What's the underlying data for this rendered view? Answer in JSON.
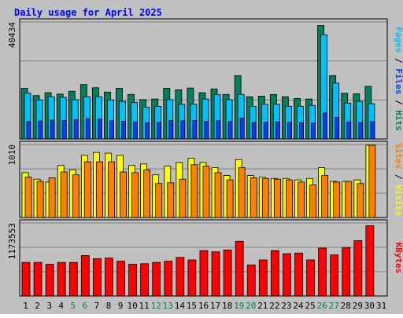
{
  "colors": {
    "background": "#c0c0c0",
    "title": "#0000ff",
    "hits": "#00805c",
    "files": "#00c0ff",
    "pages": "#0040ff",
    "visits": "#ffff00",
    "sites": "#ff8000",
    "kbytes": "#ff0000",
    "grid": "#808080",
    "axis_label": "#000000",
    "weekend_label": "#00805c"
  },
  "chart_data": [
    {
      "type": "bar",
      "title": "Daily usage for April 2025",
      "y_max_label": "40434",
      "ylim": [
        0,
        40434
      ],
      "ylabel_parts": [
        {
          "text": "Pages",
          "color": "#00c0ff"
        },
        {
          "text": " / ",
          "color": "#000000"
        },
        {
          "text": "Files",
          "color": "#0040ff"
        },
        {
          "text": " / ",
          "color": "#000000"
        },
        {
          "text": "Hits",
          "color": "#00805c"
        }
      ],
      "categories": [
        "1",
        "2",
        "3",
        "4",
        "5",
        "6",
        "7",
        "8",
        "9",
        "10",
        "11",
        "12",
        "13",
        "14",
        "15",
        "16",
        "17",
        "18",
        "19",
        "20",
        "21",
        "22",
        "23",
        "24",
        "25",
        "26",
        "27",
        "28",
        "29",
        "30",
        "31"
      ],
      "series": [
        {
          "name": "Hits",
          "color": "#00805c",
          "values": [
            17500,
            15000,
            16000,
            15500,
            16500,
            18800,
            17700,
            16200,
            17500,
            15400,
            13600,
            13800,
            17500,
            17000,
            17600,
            16000,
            17300,
            15400,
            21900,
            14600,
            14800,
            15400,
            14600,
            14000,
            13800,
            39200,
            21900,
            15800,
            15600,
            18200,
            0
          ]
        },
        {
          "name": "Files",
          "color": "#00c0ff",
          "values": [
            15800,
            13500,
            14600,
            14400,
            13600,
            14600,
            14600,
            13500,
            13000,
            12600,
            11000,
            11300,
            13600,
            12000,
            12000,
            13800,
            15400,
            13600,
            15400,
            11300,
            12000,
            12000,
            11300,
            11300,
            11600,
            36000,
            19300,
            12400,
            13000,
            12200,
            0
          ]
        },
        {
          "name": "Pages",
          "color": "#0040ff",
          "values": [
            6000,
            6200,
            6500,
            6400,
            6600,
            7000,
            6800,
            6300,
            6100,
            5900,
            5600,
            5700,
            6400,
            6300,
            6400,
            6100,
            6300,
            6000,
            7200,
            5700,
            5800,
            5900,
            5700,
            5600,
            5500,
            9000,
            7500,
            5900,
            5800,
            6000,
            0
          ]
        }
      ]
    },
    {
      "type": "bar",
      "y_max_label": "1010",
      "ylim": [
        0,
        1010
      ],
      "ylabel_parts": [
        {
          "text": "Sites",
          "color": "#ff8000"
        },
        {
          "text": " / ",
          "color": "#000000"
        },
        {
          "text": "Visits",
          "color": "#ffff00"
        }
      ],
      "categories": [
        "1",
        "2",
        "3",
        "4",
        "5",
        "6",
        "7",
        "8",
        "9",
        "10",
        "11",
        "12",
        "13",
        "14",
        "15",
        "16",
        "17",
        "18",
        "19",
        "20",
        "21",
        "22",
        "23",
        "24",
        "25",
        "26",
        "27",
        "28",
        "29",
        "30",
        "31"
      ],
      "series": [
        {
          "name": "Visits",
          "color": "#ffff00",
          "values": [
            620,
            530,
            490,
            720,
            660,
            860,
            900,
            890,
            860,
            720,
            740,
            590,
            710,
            760,
            820,
            760,
            690,
            580,
            800,
            580,
            560,
            540,
            540,
            520,
            540,
            690,
            500,
            500,
            520,
            1000,
            0
          ]
        },
        {
          "name": "Sites",
          "color": "#ff8000",
          "values": [
            560,
            500,
            550,
            630,
            590,
            770,
            770,
            770,
            630,
            620,
            660,
            470,
            480,
            530,
            730,
            710,
            620,
            520,
            690,
            550,
            540,
            530,
            520,
            490,
            450,
            580,
            490,
            500,
            470,
            1000,
            0
          ]
        }
      ]
    },
    {
      "type": "bar",
      "y_max_label": "1173553",
      "ylim": [
        0,
        1173553
      ],
      "ylabel_parts": [
        {
          "text": "KBytes",
          "color": "#ff0000"
        }
      ],
      "categories": [
        "1",
        "2",
        "3",
        "4",
        "5",
        "6",
        "7",
        "8",
        "9",
        "10",
        "11",
        "12",
        "13",
        "14",
        "15",
        "16",
        "17",
        "18",
        "19",
        "20",
        "21",
        "22",
        "23",
        "24",
        "25",
        "26",
        "27",
        "28",
        "29",
        "30",
        "31"
      ],
      "series": [
        {
          "name": "KBytes",
          "color": "#ff0000",
          "values": [
            540000,
            540000,
            510000,
            540000,
            540000,
            650000,
            600000,
            610000,
            560000,
            510000,
            520000,
            540000,
            560000,
            620000,
            580000,
            730000,
            710000,
            740000,
            880000,
            500000,
            580000,
            730000,
            680000,
            690000,
            580000,
            770000,
            660000,
            780000,
            890000,
            1130000,
            0
          ]
        }
      ]
    }
  ],
  "x_axis": {
    "labels": [
      "1",
      "2",
      "3",
      "4",
      "5",
      "6",
      "7",
      "8",
      "9",
      "10",
      "11",
      "12",
      "13",
      "14",
      "15",
      "16",
      "17",
      "18",
      "19",
      "20",
      "21",
      "22",
      "23",
      "24",
      "25",
      "26",
      "27",
      "28",
      "29",
      "30",
      "31"
    ],
    "weekend_days": [
      "5",
      "6",
      "12",
      "13",
      "19",
      "20",
      "26",
      "27"
    ]
  }
}
